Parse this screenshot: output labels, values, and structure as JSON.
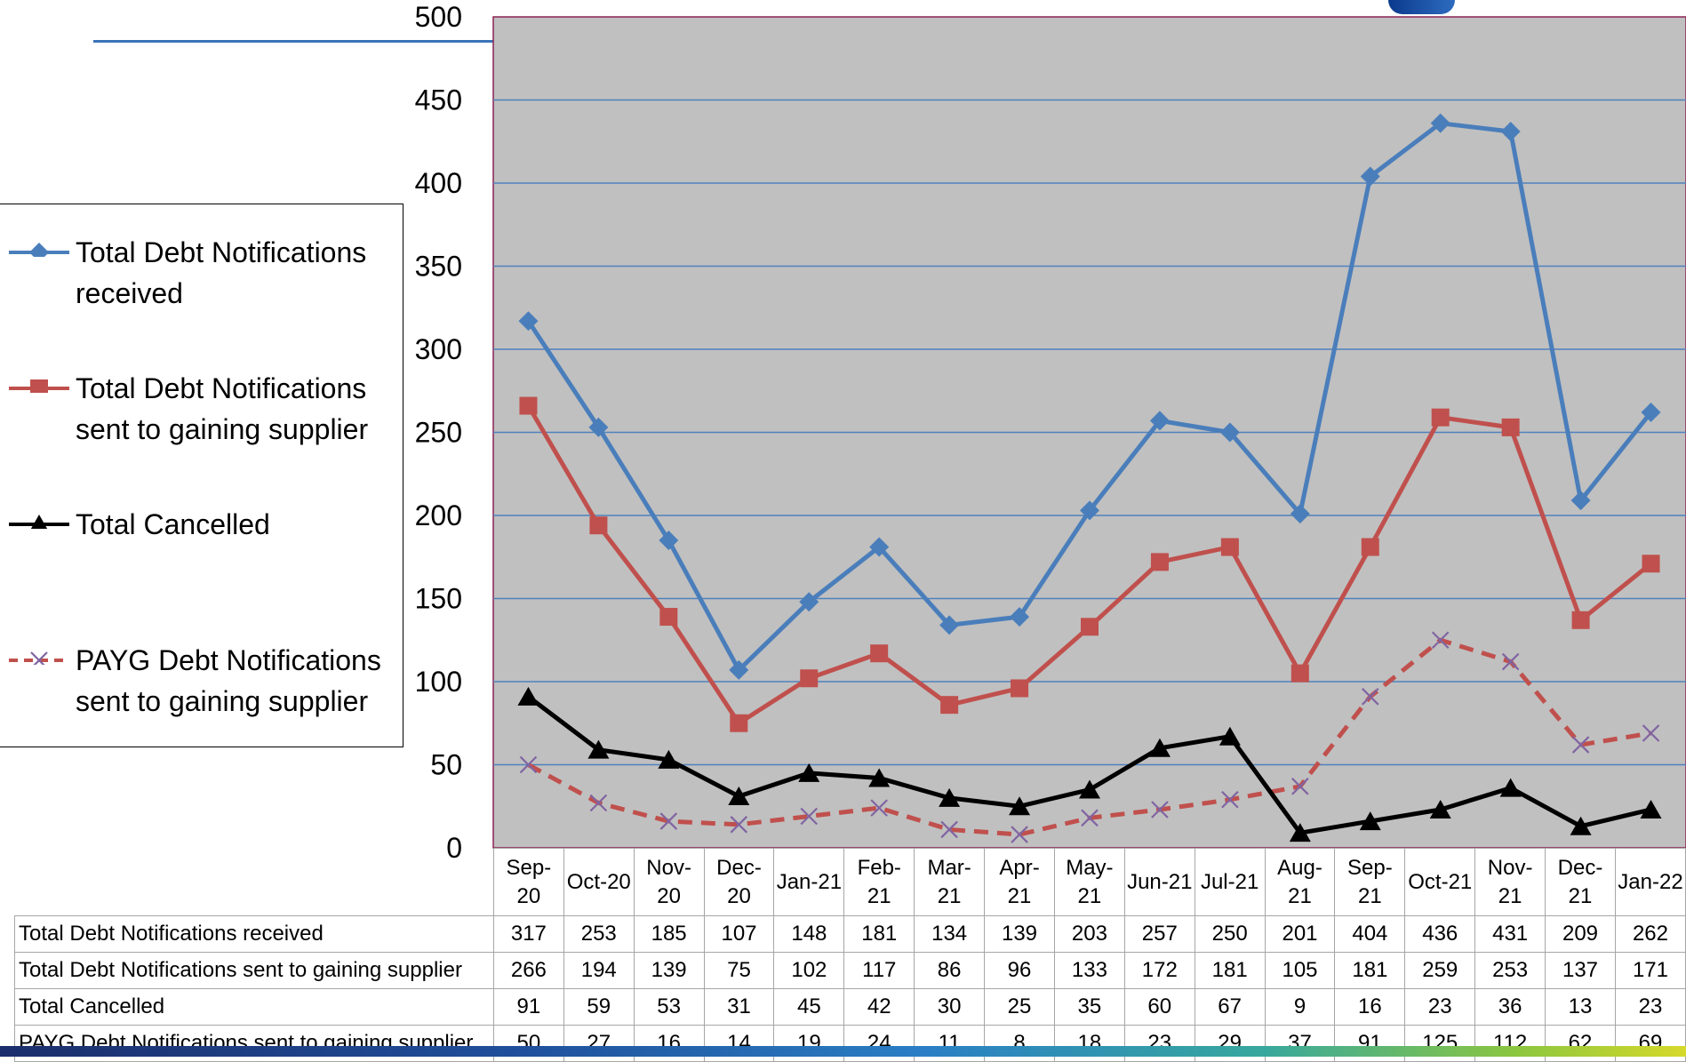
{
  "chart_data": {
    "type": "line",
    "categories": [
      "Sep-20",
      "Oct-20",
      "Nov-20",
      "Dec-20",
      "Jan-21",
      "Feb-21",
      "Mar-21",
      "Apr-21",
      "May-21",
      "Jun-21",
      "Jul-21",
      "Aug-21",
      "Sep-21",
      "Oct-21",
      "Nov-21",
      "Dec-21",
      "Jan-22"
    ],
    "category_labels": [
      [
        "Sep-",
        "20"
      ],
      [
        "Oct-20"
      ],
      [
        "Nov-",
        "20"
      ],
      [
        "Dec-",
        "20"
      ],
      [
        "Jan-21"
      ],
      [
        "Feb-",
        "21"
      ],
      [
        "Mar-",
        "21"
      ],
      [
        "Apr-",
        "21"
      ],
      [
        "May-",
        "21"
      ],
      [
        "Jun-21"
      ],
      [
        "Jul-21"
      ],
      [
        "Aug-",
        "21"
      ],
      [
        "Sep-",
        "21"
      ],
      [
        "Oct-21"
      ],
      [
        "Nov-",
        "21"
      ],
      [
        "Dec-",
        "21"
      ],
      [
        "Jan-22"
      ]
    ],
    "ylim": [
      0,
      500
    ],
    "yticks": [
      0,
      50,
      100,
      150,
      200,
      250,
      300,
      350,
      400,
      450,
      500
    ],
    "grid": true,
    "plot_background": "#c0c0c0",
    "gridline_color": "#4f81bd",
    "legend_placement": "left",
    "series": [
      {
        "name": "Total Debt Notifications received",
        "legend_lines": [
          "Total Debt Notifications",
          "received"
        ],
        "color": "#4a7ebb",
        "marker": "diamond",
        "dash": "solid",
        "values": [
          317,
          253,
          185,
          107,
          148,
          181,
          134,
          139,
          203,
          257,
          250,
          201,
          404,
          436,
          431,
          209,
          262
        ]
      },
      {
        "name": "Total Debt Notifications sent to gaining supplier",
        "legend_lines": [
          "Total Debt Notifications",
          "sent to gaining supplier"
        ],
        "color": "#c0504d",
        "marker": "square",
        "dash": "solid",
        "values": [
          266,
          194,
          139,
          75,
          102,
          117,
          86,
          96,
          133,
          172,
          181,
          105,
          181,
          259,
          253,
          137,
          171
        ]
      },
      {
        "name": "Total Cancelled",
        "legend_lines": [
          "Total Cancelled"
        ],
        "color": "#000000",
        "marker": "triangle",
        "dash": "solid",
        "values": [
          91,
          59,
          53,
          31,
          45,
          42,
          30,
          25,
          35,
          60,
          67,
          9,
          16,
          23,
          36,
          13,
          23
        ]
      },
      {
        "name": "PAYG Debt Notifications sent to gaining supplier",
        "legend_lines": [
          "PAYG Debt Notifications",
          "sent to gaining supplier"
        ],
        "color": "#c0504d",
        "marker": "x",
        "marker_color": "#8064a2",
        "dash": "dashed",
        "values": [
          50,
          27,
          16,
          14,
          19,
          24,
          11,
          8,
          18,
          23,
          29,
          37,
          91,
          125,
          112,
          62,
          69
        ]
      }
    ]
  }
}
